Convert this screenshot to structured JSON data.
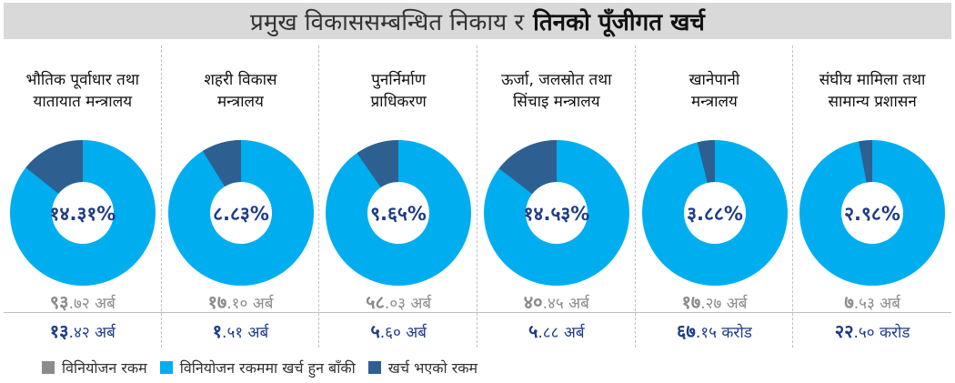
{
  "title": {
    "normal": "प्रमुख विकाससम्बन्धित निकाय र",
    "bold": "तिनको पूँजीगत खर्च"
  },
  "colors": {
    "allocation": "#8c8c8c",
    "remaining": "#00aeef",
    "spent": "#2e5f91",
    "spent_text": "#1f3c88"
  },
  "chart_data": {
    "type": "pie",
    "variant": "donut",
    "series_names": [
      "विनियोजन रकममा खर्च हुन बाँकी",
      "खर्च भएको रकम"
    ],
    "panels": [
      {
        "name_line1": "भौतिक पूर्वाधार तथा",
        "name_line2": "यातायात मन्त्रालय",
        "percent_label": "१४.३१%",
        "spent_percent": 14.31,
        "allocation_value": "९३",
        "allocation_decimal": ".७२",
        "allocation_unit": "अर्ब",
        "spent_value": "१३",
        "spent_decimal": ".४२",
        "spent_unit": "अर्ब"
      },
      {
        "name_line1": "शहरी विकास",
        "name_line2": "मन्त्रालय",
        "percent_label": "८.८३%",
        "spent_percent": 8.83,
        "allocation_value": "१७",
        "allocation_decimal": ".१०",
        "allocation_unit": "अर्ब",
        "spent_value": "१",
        "spent_decimal": ".५१",
        "spent_unit": "अर्ब"
      },
      {
        "name_line1": "पुनर्निर्माण",
        "name_line2": "प्राधिकरण",
        "percent_label": "९.६५%",
        "spent_percent": 9.65,
        "allocation_value": "५८",
        "allocation_decimal": ".०३",
        "allocation_unit": "अर्ब",
        "spent_value": "५",
        "spent_decimal": ".६०",
        "spent_unit": "अर्ब"
      },
      {
        "name_line1": "ऊर्जा, जलस्रोत तथा",
        "name_line2": "सिंचाइ मन्त्रालय",
        "percent_label": "१४.५३%",
        "spent_percent": 14.53,
        "allocation_value": "४०",
        "allocation_decimal": ".४५",
        "allocation_unit": "अर्ब",
        "spent_value": "५",
        "spent_decimal": ".८८",
        "spent_unit": "अर्ब"
      },
      {
        "name_line1": "खानेपानी",
        "name_line2": "मन्त्रालय",
        "percent_label": "३.८८%",
        "spent_percent": 3.88,
        "allocation_value": "१७",
        "allocation_decimal": ".२७",
        "allocation_unit": "अर्ब",
        "spent_value": "६७",
        "spent_decimal": ".१५",
        "spent_unit": "करोड"
      },
      {
        "name_line1": "संघीय मामिला तथा",
        "name_line2": "सामान्य प्रशासन",
        "percent_label": "२.९८%",
        "spent_percent": 2.98,
        "allocation_value": "७",
        "allocation_decimal": ".५३",
        "allocation_unit": "अर्ब",
        "spent_value": "२२",
        "spent_decimal": ".५०",
        "spent_unit": "करोड"
      }
    ]
  },
  "legend": {
    "allocation": "विनियोजन रकम",
    "remaining": "विनियोजन रकममा खर्च हुन बाँकी",
    "spent": "खर्च भएको रकम"
  }
}
